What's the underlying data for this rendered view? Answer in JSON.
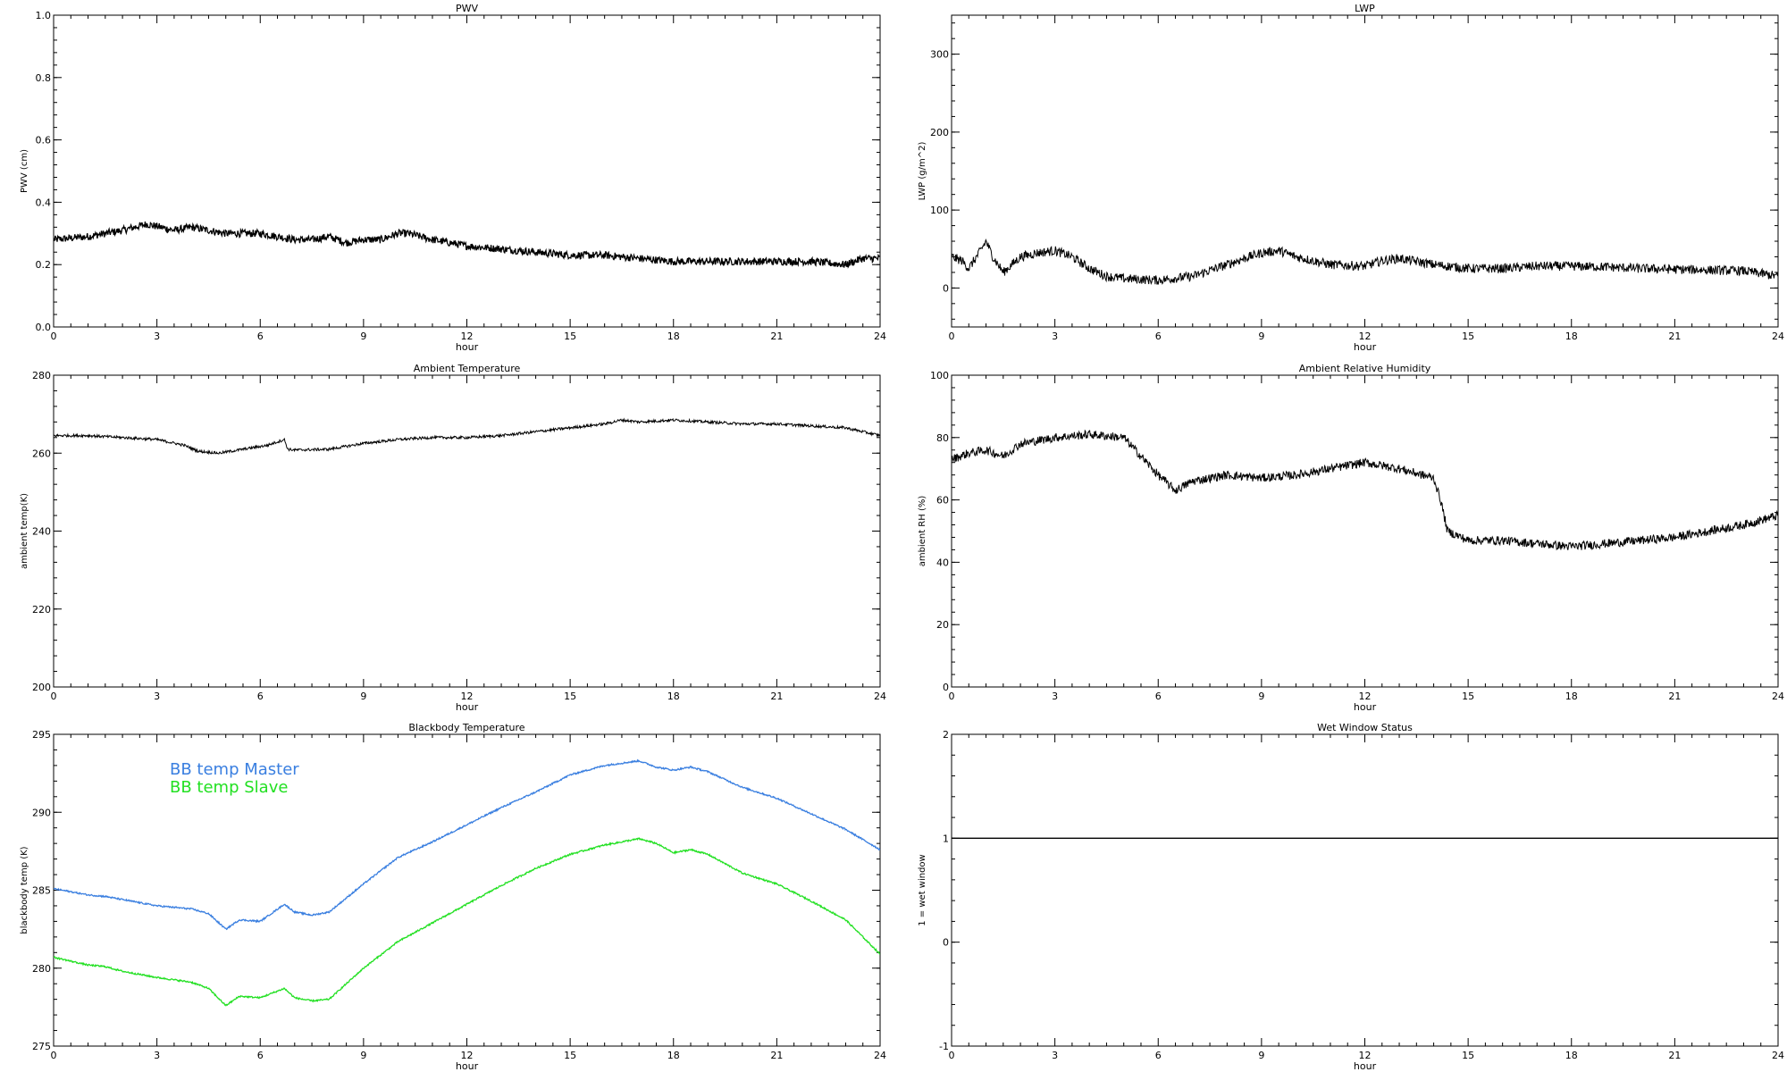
{
  "chart_data": [
    {
      "type": "line",
      "title": "PWV",
      "xlabel": "hour",
      "ylabel": "PWV (cm)",
      "xlim": [
        0,
        24
      ],
      "ylim": [
        0,
        1.0
      ],
      "xticks": [
        "0",
        "3",
        "6",
        "9",
        "12",
        "15",
        "18",
        "21",
        "24"
      ],
      "yticks": [
        "0.0",
        "0.2",
        "0.4",
        "0.6",
        "0.8",
        "1.0"
      ],
      "grid": false,
      "series": [
        {
          "color": "#000000",
          "noise": 0.012,
          "x": [
            0,
            1,
            2,
            2.7,
            3.5,
            4,
            5,
            6,
            7,
            7.5,
            8,
            8.5,
            9,
            9.5,
            10,
            10.3,
            11,
            12,
            13,
            14,
            15,
            16,
            17,
            18,
            19,
            20,
            21,
            22,
            23,
            23.5,
            24
          ],
          "y": [
            0.28,
            0.29,
            0.31,
            0.33,
            0.31,
            0.32,
            0.3,
            0.3,
            0.28,
            0.28,
            0.29,
            0.27,
            0.28,
            0.28,
            0.3,
            0.3,
            0.28,
            0.26,
            0.25,
            0.24,
            0.23,
            0.23,
            0.22,
            0.21,
            0.21,
            0.21,
            0.21,
            0.21,
            0.2,
            0.22,
            0.22
          ]
        }
      ]
    },
    {
      "type": "line",
      "title": "LWP",
      "xlabel": "hour",
      "ylabel": "LWP (g/m^2)",
      "xlim": [
        0,
        24
      ],
      "ylim": [
        -50,
        350
      ],
      "xticks": [
        "0",
        "3",
        "6",
        "9",
        "12",
        "15",
        "18",
        "21",
        "24"
      ],
      "yticks": [
        "0",
        "100",
        "200",
        "300"
      ],
      "grid": false,
      "series": [
        {
          "color": "#000000",
          "noise": 6,
          "x": [
            0,
            0.3,
            0.5,
            0.8,
            1,
            1.2,
            1.5,
            2,
            2.5,
            3,
            3.5,
            4,
            4.5,
            5,
            6,
            7,
            8,
            8.5,
            9,
            9.5,
            10,
            11,
            12,
            12.5,
            13,
            14,
            15,
            16,
            17,
            18,
            19,
            20,
            21,
            22,
            23,
            24
          ],
          "y": [
            40,
            35,
            25,
            45,
            60,
            40,
            20,
            40,
            45,
            48,
            40,
            25,
            15,
            12,
            10,
            15,
            30,
            38,
            45,
            48,
            40,
            30,
            28,
            35,
            38,
            30,
            25,
            25,
            28,
            28,
            27,
            25,
            24,
            23,
            22,
            15
          ]
        }
      ]
    },
    {
      "type": "line",
      "title": "Ambient Temperature",
      "xlabel": "hour",
      "ylabel": "ambient temp(K)",
      "xlim": [
        0,
        24
      ],
      "ylim": [
        200,
        280
      ],
      "xticks": [
        "0",
        "3",
        "6",
        "9",
        "12",
        "15",
        "18",
        "21",
        "24"
      ],
      "yticks": [
        "200",
        "220",
        "240",
        "260",
        "280"
      ],
      "grid": false,
      "series": [
        {
          "color": "#000000",
          "noise": 0.35,
          "x": [
            0,
            1,
            2,
            3,
            3.8,
            4.2,
            4.8,
            5.5,
            6.2,
            6.7,
            6.8,
            7,
            8,
            9,
            10,
            11,
            12,
            13,
            14,
            15,
            16,
            16.5,
            17,
            18,
            19,
            20,
            21,
            22,
            23,
            24
          ],
          "y": [
            264.5,
            264.5,
            264,
            263.5,
            262,
            260.5,
            260,
            261,
            262,
            263.5,
            261,
            260.8,
            261,
            262.5,
            263.5,
            264,
            264,
            264.5,
            265.5,
            266.5,
            267.5,
            268.5,
            268,
            268.5,
            268,
            267.5,
            267.5,
            267,
            266.5,
            264.5
          ]
        }
      ]
    },
    {
      "type": "line",
      "title": "Ambient Relative Humidity",
      "xlabel": "hour",
      "ylabel": "ambient RH (%)",
      "xlim": [
        0,
        24
      ],
      "ylim": [
        0,
        100
      ],
      "xticks": [
        "0",
        "3",
        "6",
        "9",
        "12",
        "15",
        "18",
        "21",
        "24"
      ],
      "yticks": [
        "0",
        "20",
        "40",
        "60",
        "80",
        "100"
      ],
      "grid": false,
      "series": [
        {
          "color": "#000000",
          "noise": 1.4,
          "x": [
            0,
            0.5,
            1,
            1.5,
            2,
            3,
            4,
            5,
            5.5,
            6,
            6.5,
            7,
            8,
            9,
            10,
            11,
            12,
            13,
            14,
            14.2,
            14.4,
            15,
            16,
            17,
            18,
            19,
            20,
            21,
            22,
            23,
            24
          ],
          "y": [
            73,
            75,
            76,
            74,
            78,
            80,
            81,
            80,
            74,
            68,
            63,
            66,
            68,
            67,
            68,
            70,
            72,
            70,
            67,
            60,
            50,
            47,
            47,
            46,
            45,
            46,
            47,
            48,
            50,
            52,
            55
          ]
        }
      ]
    },
    {
      "type": "line",
      "title": "Blackbody Temperature",
      "xlabel": "hour",
      "ylabel": "blackbody temp (K)",
      "xlim": [
        0,
        24
      ],
      "ylim": [
        275,
        295
      ],
      "xticks": [
        "0",
        "3",
        "6",
        "9",
        "12",
        "15",
        "18",
        "21",
        "24"
      ],
      "yticks": [
        "275",
        "280",
        "285",
        "290",
        "295"
      ],
      "grid": false,
      "legend": "top-left",
      "series": [
        {
          "name": "BB temp Master",
          "color": "#3a7fe0",
          "noise": 0.05,
          "x": [
            0,
            1,
            1.5,
            2,
            3,
            4,
            4.5,
            5,
            5.4,
            6,
            6.7,
            7,
            7.5,
            8,
            9,
            10,
            11,
            12,
            13,
            14,
            15,
            16,
            17,
            17.5,
            18,
            18.5,
            19,
            20,
            21,
            22,
            23,
            24
          ],
          "y": [
            285.1,
            284.7,
            284.6,
            284.4,
            284.0,
            283.8,
            283.5,
            282.5,
            283.1,
            283.0,
            284.1,
            283.6,
            283.4,
            283.6,
            285.4,
            287.1,
            288.1,
            289.2,
            290.3,
            291.3,
            292.4,
            293.0,
            293.3,
            292.9,
            292.7,
            292.9,
            292.6,
            291.6,
            290.9,
            289.9,
            288.9,
            287.6
          ]
        },
        {
          "name": "BB temp Slave",
          "color": "#22e022",
          "noise": 0.05,
          "x": [
            0,
            1,
            1.5,
            2,
            3,
            4,
            4.5,
            5,
            5.4,
            6,
            6.7,
            7,
            7.5,
            8,
            9,
            10,
            11,
            12,
            13,
            14,
            15,
            16,
            17,
            17.5,
            18,
            18.5,
            19,
            20,
            21,
            22,
            23,
            24
          ],
          "y": [
            280.7,
            280.2,
            280.1,
            279.8,
            279.4,
            279.1,
            278.7,
            277.6,
            278.2,
            278.1,
            278.7,
            278.1,
            277.9,
            278.0,
            280.0,
            281.7,
            282.9,
            284.1,
            285.3,
            286.4,
            287.3,
            287.9,
            288.3,
            288.0,
            287.4,
            287.6,
            287.3,
            286.1,
            285.4,
            284.3,
            283.1,
            280.9
          ]
        }
      ]
    },
    {
      "type": "line",
      "title": "Wet Window Status",
      "xlabel": "hour",
      "ylabel": "1 = wet window",
      "xlim": [
        0,
        24
      ],
      "ylim": [
        -1,
        2
      ],
      "xticks": [
        "0",
        "3",
        "6",
        "9",
        "12",
        "15",
        "18",
        "21",
        "24"
      ],
      "yticks": [
        "-1",
        "0",
        "1",
        "2"
      ],
      "grid": false,
      "series": [
        {
          "color": "#000000",
          "noise": 0,
          "x": [
            0,
            24
          ],
          "y": [
            1,
            1
          ]
        }
      ]
    }
  ]
}
